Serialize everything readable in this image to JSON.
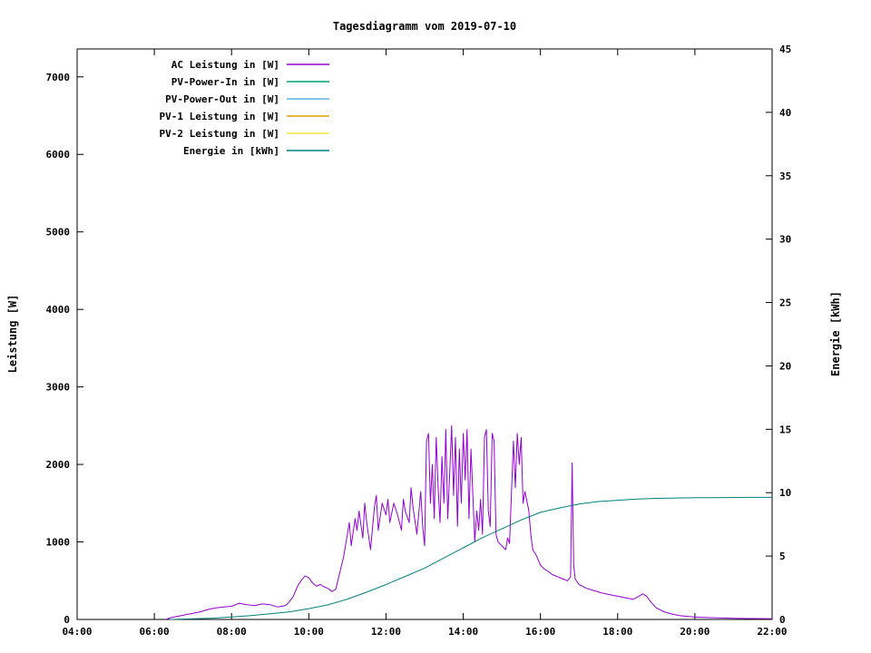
{
  "chart_data": {
    "type": "line",
    "title": "Tagesdiagramm vom 2019-07-10",
    "xlabel": "",
    "ylabel_left": "Leistung [W]",
    "ylabel_right": "Energie [kWh]",
    "xlim": [
      4,
      22
    ],
    "ylim_left": [
      0,
      7360
    ],
    "ylim_right": [
      0,
      45
    ],
    "grid": false,
    "legend_position": "top-left",
    "x_ticks": [
      {
        "v": 4,
        "label": "04:00"
      },
      {
        "v": 6,
        "label": "06:00"
      },
      {
        "v": 8,
        "label": "08:00"
      },
      {
        "v": 10,
        "label": "10:00"
      },
      {
        "v": 12,
        "label": "12:00"
      },
      {
        "v": 14,
        "label": "14:00"
      },
      {
        "v": 16,
        "label": "16:00"
      },
      {
        "v": 18,
        "label": "18:00"
      },
      {
        "v": 20,
        "label": "20:00"
      },
      {
        "v": 22,
        "label": "22:00"
      }
    ],
    "y_ticks_left": [
      0,
      1000,
      2000,
      3000,
      4000,
      5000,
      6000,
      7000
    ],
    "y_ticks_right": [
      0,
      5,
      10,
      15,
      20,
      25,
      30,
      35,
      40,
      45
    ],
    "series": [
      {
        "name": "AC Leistung in [W]",
        "color": "#9400d3",
        "axis": "left",
        "points": [
          [
            6.3,
            0
          ],
          [
            6.4,
            20
          ],
          [
            6.6,
            40
          ],
          [
            6.8,
            60
          ],
          [
            7.0,
            80
          ],
          [
            7.2,
            100
          ],
          [
            7.4,
            130
          ],
          [
            7.6,
            150
          ],
          [
            7.8,
            160
          ],
          [
            8.0,
            170
          ],
          [
            8.2,
            210
          ],
          [
            8.4,
            190
          ],
          [
            8.6,
            180
          ],
          [
            8.8,
            200
          ],
          [
            9.0,
            190
          ],
          [
            9.2,
            160
          ],
          [
            9.4,
            180
          ],
          [
            9.5,
            230
          ],
          [
            9.6,
            300
          ],
          [
            9.7,
            420
          ],
          [
            9.8,
            500
          ],
          [
            9.9,
            560
          ],
          [
            10.0,
            540
          ],
          [
            10.1,
            470
          ],
          [
            10.2,
            430
          ],
          [
            10.3,
            450
          ],
          [
            10.4,
            420
          ],
          [
            10.5,
            400
          ],
          [
            10.6,
            360
          ],
          [
            10.7,
            390
          ],
          [
            10.8,
            600
          ],
          [
            10.9,
            800
          ],
          [
            11.0,
            1100
          ],
          [
            11.05,
            1250
          ],
          [
            11.1,
            950
          ],
          [
            11.2,
            1300
          ],
          [
            11.25,
            1150
          ],
          [
            11.3,
            1400
          ],
          [
            11.4,
            1050
          ],
          [
            11.45,
            1500
          ],
          [
            11.5,
            1250
          ],
          [
            11.6,
            900
          ],
          [
            11.7,
            1450
          ],
          [
            11.75,
            1600
          ],
          [
            11.8,
            1150
          ],
          [
            11.9,
            1500
          ],
          [
            12.0,
            1350
          ],
          [
            12.05,
            1550
          ],
          [
            12.1,
            1250
          ],
          [
            12.2,
            1500
          ],
          [
            12.3,
            1350
          ],
          [
            12.4,
            1150
          ],
          [
            12.45,
            1550
          ],
          [
            12.5,
            1400
          ],
          [
            12.6,
            1250
          ],
          [
            12.65,
            1700
          ],
          [
            12.7,
            1450
          ],
          [
            12.8,
            1100
          ],
          [
            12.9,
            1650
          ],
          [
            12.95,
            1200
          ],
          [
            13.0,
            950
          ],
          [
            13.05,
            2300
          ],
          [
            13.1,
            2400
          ],
          [
            13.15,
            1500
          ],
          [
            13.2,
            2000
          ],
          [
            13.25,
            1300
          ],
          [
            13.3,
            2350
          ],
          [
            13.35,
            1700
          ],
          [
            13.4,
            1250
          ],
          [
            13.45,
            2100
          ],
          [
            13.5,
            1500
          ],
          [
            13.55,
            2450
          ],
          [
            13.6,
            1300
          ],
          [
            13.65,
            1900
          ],
          [
            13.7,
            2500
          ],
          [
            13.75,
            1600
          ],
          [
            13.8,
            2350
          ],
          [
            13.85,
            1200
          ],
          [
            13.9,
            2200
          ],
          [
            13.95,
            1500
          ],
          [
            14.0,
            2400
          ],
          [
            14.05,
            1800
          ],
          [
            14.1,
            2450
          ],
          [
            14.15,
            1300
          ],
          [
            14.2,
            2200
          ],
          [
            14.25,
            1600
          ],
          [
            14.3,
            1000
          ],
          [
            14.35,
            1400
          ],
          [
            14.4,
            1150
          ],
          [
            14.45,
            1550
          ],
          [
            14.5,
            1100
          ],
          [
            14.55,
            2350
          ],
          [
            14.6,
            2450
          ],
          [
            14.65,
            1400
          ],
          [
            14.7,
            1200
          ],
          [
            14.75,
            2400
          ],
          [
            14.8,
            2300
          ],
          [
            14.85,
            1100
          ],
          [
            14.9,
            1000
          ],
          [
            15.0,
            950
          ],
          [
            15.1,
            900
          ],
          [
            15.15,
            1050
          ],
          [
            15.2,
            980
          ],
          [
            15.3,
            2300
          ],
          [
            15.35,
            1700
          ],
          [
            15.4,
            2400
          ],
          [
            15.45,
            2000
          ],
          [
            15.5,
            2350
          ],
          [
            15.55,
            1500
          ],
          [
            15.6,
            1650
          ],
          [
            15.7,
            1400
          ],
          [
            15.75,
            1100
          ],
          [
            15.8,
            900
          ],
          [
            15.9,
            820
          ],
          [
            16.0,
            700
          ],
          [
            16.1,
            650
          ],
          [
            16.2,
            620
          ],
          [
            16.3,
            580
          ],
          [
            16.4,
            560
          ],
          [
            16.5,
            540
          ],
          [
            16.6,
            520
          ],
          [
            16.7,
            500
          ],
          [
            16.78,
            550
          ],
          [
            16.82,
            2020
          ],
          [
            16.86,
            700
          ],
          [
            16.9,
            520
          ],
          [
            17.0,
            450
          ],
          [
            17.2,
            400
          ],
          [
            17.4,
            370
          ],
          [
            17.6,
            340
          ],
          [
            17.8,
            320
          ],
          [
            18.0,
            300
          ],
          [
            18.2,
            280
          ],
          [
            18.4,
            260
          ],
          [
            18.55,
            300
          ],
          [
            18.65,
            330
          ],
          [
            18.75,
            300
          ],
          [
            18.85,
            230
          ],
          [
            19.0,
            150
          ],
          [
            19.2,
            100
          ],
          [
            19.4,
            70
          ],
          [
            19.6,
            50
          ],
          [
            19.8,
            40
          ],
          [
            20.0,
            30
          ],
          [
            20.3,
            25
          ],
          [
            20.6,
            20
          ],
          [
            21.0,
            15
          ],
          [
            21.4,
            12
          ],
          [
            21.8,
            10
          ],
          [
            22.0,
            8
          ]
        ]
      },
      {
        "name": "PV-Power-In in [W]",
        "color": "#009e73",
        "axis": "left",
        "points": []
      },
      {
        "name": "PV-Power-Out in [W]",
        "color": "#56b4e9",
        "axis": "left",
        "points": []
      },
      {
        "name": "PV-1 Leistung in [W]",
        "color": "#e69f00",
        "axis": "left",
        "points": []
      },
      {
        "name": "PV-2 Leistung in [W]",
        "color": "#f0e442",
        "axis": "left",
        "points": []
      },
      {
        "name": "Energie in [kWh]",
        "color": "#008080",
        "axis": "right",
        "points": [
          [
            6.4,
            0
          ],
          [
            7.0,
            0.05
          ],
          [
            7.5,
            0.1
          ],
          [
            8.0,
            0.2
          ],
          [
            8.5,
            0.3
          ],
          [
            9.0,
            0.45
          ],
          [
            9.5,
            0.6
          ],
          [
            10.0,
            0.85
          ],
          [
            10.5,
            1.15
          ],
          [
            11.0,
            1.6
          ],
          [
            11.5,
            2.15
          ],
          [
            12.0,
            2.75
          ],
          [
            12.5,
            3.4
          ],
          [
            13.0,
            4.05
          ],
          [
            13.5,
            4.85
          ],
          [
            14.0,
            5.65
          ],
          [
            14.5,
            6.45
          ],
          [
            15.0,
            7.15
          ],
          [
            15.5,
            7.85
          ],
          [
            16.0,
            8.45
          ],
          [
            16.5,
            8.8
          ],
          [
            17.0,
            9.1
          ],
          [
            17.5,
            9.3
          ],
          [
            18.0,
            9.4
          ],
          [
            18.5,
            9.5
          ],
          [
            19.0,
            9.55
          ],
          [
            19.5,
            9.58
          ],
          [
            20.0,
            9.6
          ],
          [
            20.5,
            9.61
          ],
          [
            21.0,
            9.62
          ],
          [
            21.5,
            9.63
          ],
          [
            22.0,
            9.63
          ]
        ]
      }
    ]
  }
}
